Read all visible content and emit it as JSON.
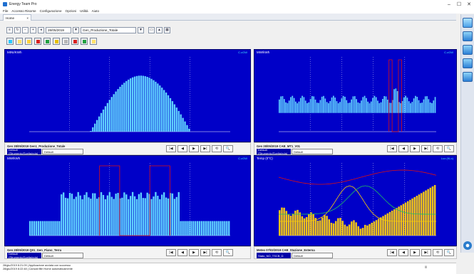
{
  "app": {
    "title": "Energy Team Pro"
  },
  "window_controls": [
    "–",
    "☐",
    "✕"
  ],
  "menu": [
    "File",
    "Accesso Risorse",
    "Configurazione",
    "Opzioni",
    "Utilità",
    "Aiuto"
  ],
  "tab": {
    "label": "Home",
    "close": "×"
  },
  "toolbar": {
    "date": "28/05/2019",
    "date_dropdown": "▼",
    "combo_value": "Gen_Produzione_Totale",
    "combo_dropdown": "▼"
  },
  "color_buttons": [
    "#28c8ff",
    "#ffe36b",
    "#ffd23c",
    "#d82020",
    "#20a040",
    "#e6c000",
    "#b7b7b7",
    "#d82020",
    "#20a040",
    "#ffe36b"
  ],
  "charts": [
    {
      "title": "MINI/KWh",
      "unit_right": "C.cGW",
      "footer_name": "Gen 28/05/2019 Gen1_Produzione_Totale",
      "footer_label": "Default (Strumento/Scelta/nda)",
      "footer_select": "Default",
      "color": "#5fd0ff"
    },
    {
      "title": "MW/kWh",
      "unit_right": "C.cGW",
      "footer_name": "Gen 28/05/2019 CAB_MT1_V01",
      "footer_label": "Default (Strumento/Scelta/nda)",
      "footer_select": "Default",
      "color": "#5fd0ff"
    },
    {
      "title": "MW/kWh",
      "unit_right": "C.cGW",
      "footer_name": "Gen 28/05/2019 Q01_Gen_Piano_Terra",
      "footer_label": "Default (Strumento/Scelta/nda)",
      "footer_select": "Default",
      "color": "#5fd0ff"
    },
    {
      "title": "Temp (0°C)",
      "unit_right": "Lux (KLx)",
      "footer_name": "Meteo 07/02/2019 CAB_Stazione_Esterna",
      "footer_label": "Stato_NO_TSCB_D",
      "footer_select": "Default",
      "color": "#f0c419"
    }
  ],
  "nav_buttons": [
    "|◀",
    "◀",
    "▶",
    "▶|",
    "⟲",
    "🔍"
  ],
  "log": [
    "28/giu/2019 8:21:09 | Applicazione avviata con successo",
    "28/giu/2019 8:22:48 | Caricati filtri Home automaticamente"
  ],
  "log_right": "|||"
}
